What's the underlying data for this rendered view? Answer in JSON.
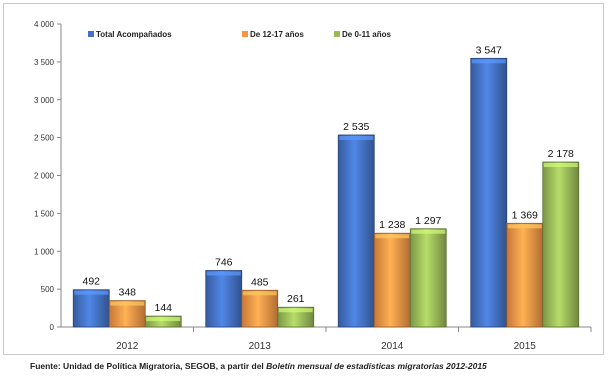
{
  "chart_data": {
    "type": "bar",
    "categories": [
      "2012",
      "2013",
      "2014",
      "2015"
    ],
    "series": [
      {
        "name": "Total Acompañados",
        "values": [
          492,
          746,
          2535,
          3547
        ],
        "labels": [
          "492",
          "746",
          "2 535",
          "3 547"
        ],
        "color": "#4472C4"
      },
      {
        "name": "De 12-17 años",
        "values": [
          348,
          485,
          1238,
          1369
        ],
        "labels": [
          "348",
          "485",
          "1 238",
          "1 369"
        ],
        "color": "#F79646"
      },
      {
        "name": "De 0-11 años",
        "values": [
          144,
          261,
          1297,
          2178
        ],
        "labels": [
          "144",
          "261",
          "1 297",
          "2 178"
        ],
        "color": "#9BBB59"
      }
    ],
    "yticks": [
      0,
      500,
      1000,
      1500,
      2000,
      2500,
      3000,
      3500,
      4000
    ],
    "ytick_labels": [
      "0",
      "500",
      "1 000",
      "1 500",
      "2 000",
      "2 500",
      "3 000",
      "3 500",
      "4 000"
    ],
    "ylim": [
      0,
      4000
    ],
    "grid": false,
    "legend_position": "top-left"
  },
  "source": {
    "prefix": "Fuente: Unidad de Política Migratoria, SEGOB, a partir del ",
    "italic_part": "Boletín mensual de estadísticas migratorias 2012-2015"
  }
}
